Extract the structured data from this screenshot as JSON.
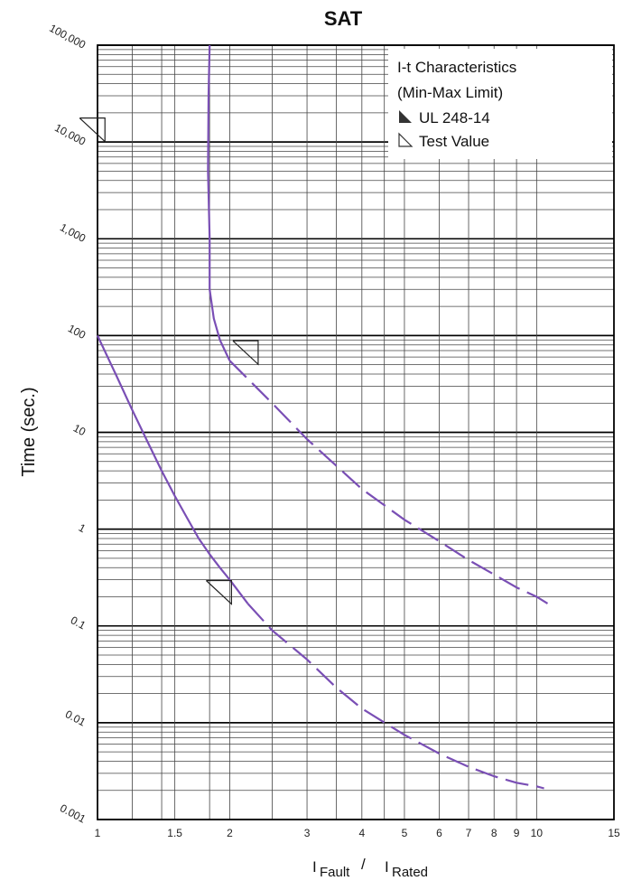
{
  "chart_data": {
    "type": "line",
    "title": "SAT",
    "ylabel": "Time (sec.)",
    "xlabel": {
      "numerator": "Fault",
      "denominator": "Rated",
      "prefix": "I",
      "separator": "/"
    },
    "x_scale": "log",
    "y_scale": "log",
    "xlim": [
      1,
      15
    ],
    "ylim": [
      0.001,
      100000
    ],
    "x_ticks": [
      {
        "v": 1,
        "label": "1"
      },
      {
        "v": 1.5,
        "label": "1.5"
      },
      {
        "v": 2,
        "label": "2"
      },
      {
        "v": 3,
        "label": "3"
      },
      {
        "v": 4,
        "label": "4"
      },
      {
        "v": 5,
        "label": "5"
      },
      {
        "v": 6,
        "label": "6"
      },
      {
        "v": 7,
        "label": "7"
      },
      {
        "v": 8,
        "label": "8"
      },
      {
        "v": 9,
        "label": "9"
      },
      {
        "v": 10,
        "label": "10"
      },
      {
        "v": 15,
        "label": "15"
      }
    ],
    "x_gridlines": [
      1.2,
      1.4,
      1.5,
      1.8,
      2,
      2.5,
      3,
      3.5,
      4,
      4.5,
      5,
      6,
      7,
      8,
      9,
      10
    ],
    "y_ticks": [
      {
        "v": 100000,
        "label": "100,000"
      },
      {
        "v": 10000,
        "label": "10,000"
      },
      {
        "v": 1000,
        "label": "1,000"
      },
      {
        "v": 100,
        "label": "100"
      },
      {
        "v": 10,
        "label": "10"
      },
      {
        "v": 1,
        "label": "1"
      },
      {
        "v": 0.1,
        "label": "0.1"
      },
      {
        "v": 0.01,
        "label": "0.01"
      },
      {
        "v": 0.001,
        "label": "0.001"
      }
    ],
    "grid": true,
    "line_color": "#7a4fb5",
    "legend": {
      "placement": "top-right",
      "title_lines": [
        "I-t Characteristics",
        "(Min-Max Limit)"
      ],
      "entries": [
        {
          "label": "UL 248-14",
          "marker": "filled-triangle"
        },
        {
          "label": "Test Value",
          "marker": "open-triangle"
        }
      ]
    },
    "series": [
      {
        "role": "max",
        "solid": [
          [
            1.8,
            100000
          ],
          [
            1.79,
            30000
          ],
          [
            1.785,
            5000
          ],
          [
            1.8,
            1000
          ],
          [
            1.8,
            300
          ],
          [
            1.84,
            150
          ],
          [
            1.9,
            90
          ],
          [
            1.95,
            70
          ],
          [
            2,
            55
          ]
        ],
        "dashed": [
          [
            2,
            55
          ],
          [
            2.5,
            20
          ],
          [
            3,
            8.5
          ],
          [
            3.5,
            4.5
          ],
          [
            4,
            2.6
          ],
          [
            5,
            1.25
          ],
          [
            6,
            0.75
          ],
          [
            7,
            0.48
          ],
          [
            8,
            0.34
          ],
          [
            9,
            0.25
          ],
          [
            10,
            0.2
          ],
          [
            10.6,
            0.17
          ]
        ]
      },
      {
        "role": "min",
        "solid": [
          [
            1,
            100
          ],
          [
            1.1,
            40
          ],
          [
            1.2,
            17
          ],
          [
            1.3,
            8
          ],
          [
            1.4,
            4
          ],
          [
            1.5,
            2.2
          ],
          [
            1.6,
            1.3
          ],
          [
            1.7,
            0.8
          ],
          [
            1.8,
            0.55
          ],
          [
            1.9,
            0.4
          ],
          [
            2,
            0.3
          ],
          [
            2.2,
            0.17
          ]
        ],
        "dashed": [
          [
            2.2,
            0.17
          ],
          [
            2.5,
            0.09
          ],
          [
            3,
            0.045
          ],
          [
            3.5,
            0.023
          ],
          [
            4,
            0.014
          ],
          [
            5,
            0.0075
          ],
          [
            6,
            0.0048
          ],
          [
            7,
            0.0035
          ],
          [
            8,
            0.0028
          ],
          [
            9,
            0.0024
          ],
          [
            10,
            0.0022
          ],
          [
            10.4,
            0.0021
          ]
        ]
      }
    ],
    "test_value_markers": [
      {
        "x": 1.03,
        "y": 12000
      },
      {
        "x": 2.3,
        "y": 60
      },
      {
        "x": 2.0,
        "y": 0.2
      }
    ]
  }
}
